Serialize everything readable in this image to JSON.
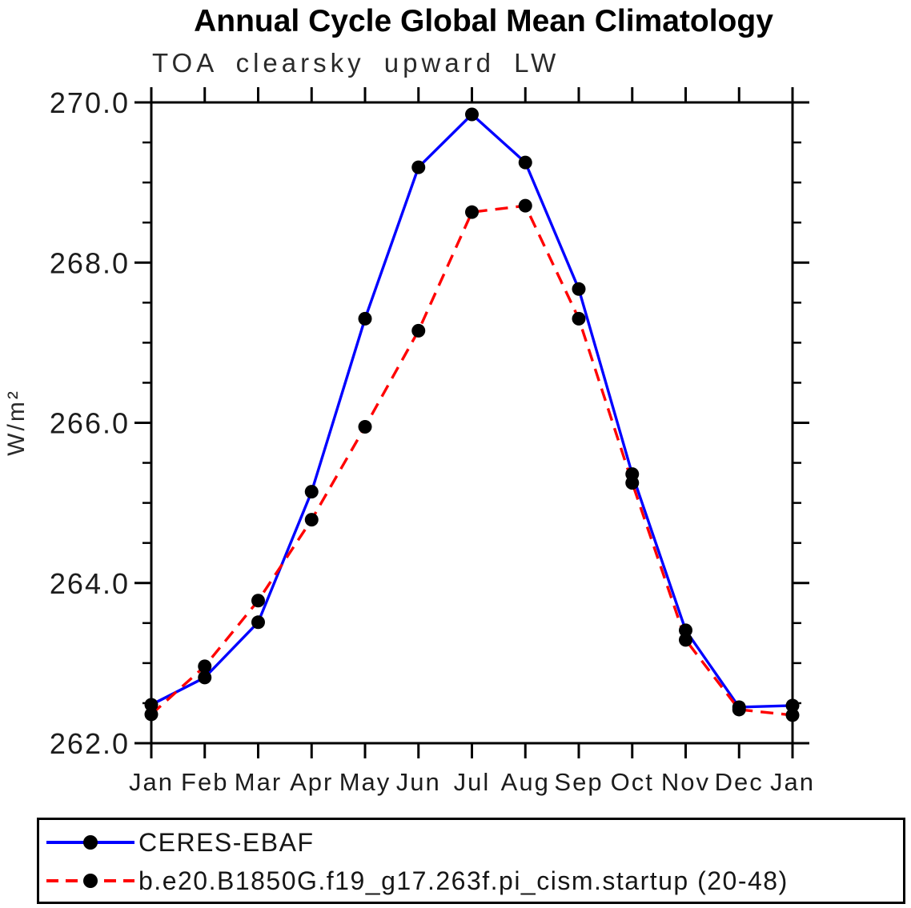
{
  "chart_data": {
    "type": "line",
    "title": "Annual Cycle Global Mean Climatology",
    "subtitle": "TOA clearsky upward LW",
    "ylabel": "W/m²",
    "xlabel": "",
    "categories": [
      "Jan",
      "Feb",
      "Mar",
      "Apr",
      "May",
      "Jun",
      "Jul",
      "Aug",
      "Sep",
      "Oct",
      "Nov",
      "Dec",
      "Jan"
    ],
    "series": [
      {
        "name": "CERES-EBAF",
        "color": "#0000ff",
        "line_style": "solid",
        "marker": "filled-circle",
        "marker_color": "#000000",
        "values": [
          262.48,
          262.82,
          263.51,
          265.14,
          267.3,
          269.19,
          269.85,
          269.25,
          267.67,
          265.36,
          263.41,
          262.45,
          262.47
        ]
      },
      {
        "name": "b.e20.B1850G.f19_g17.263f.pi_cism.startup (20-48)",
        "color": "#ff0000",
        "line_style": "dashed",
        "marker": "filled-circle",
        "marker_color": "#000000",
        "values": [
          262.36,
          262.96,
          263.78,
          264.79,
          265.95,
          267.15,
          268.63,
          268.71,
          267.3,
          265.25,
          263.29,
          262.42,
          262.35
        ]
      }
    ],
    "ylim": [
      262.0,
      270.0
    ],
    "ytick_labels": [
      "262.0",
      "264.0",
      "266.0",
      "268.0",
      "270.0"
    ],
    "ytick_major_step": 2.0,
    "ytick_minor_step": 0.5,
    "grid": false,
    "legend_position": "bottom-box",
    "axis_color": "#000000",
    "background_color": "#ffffff"
  }
}
